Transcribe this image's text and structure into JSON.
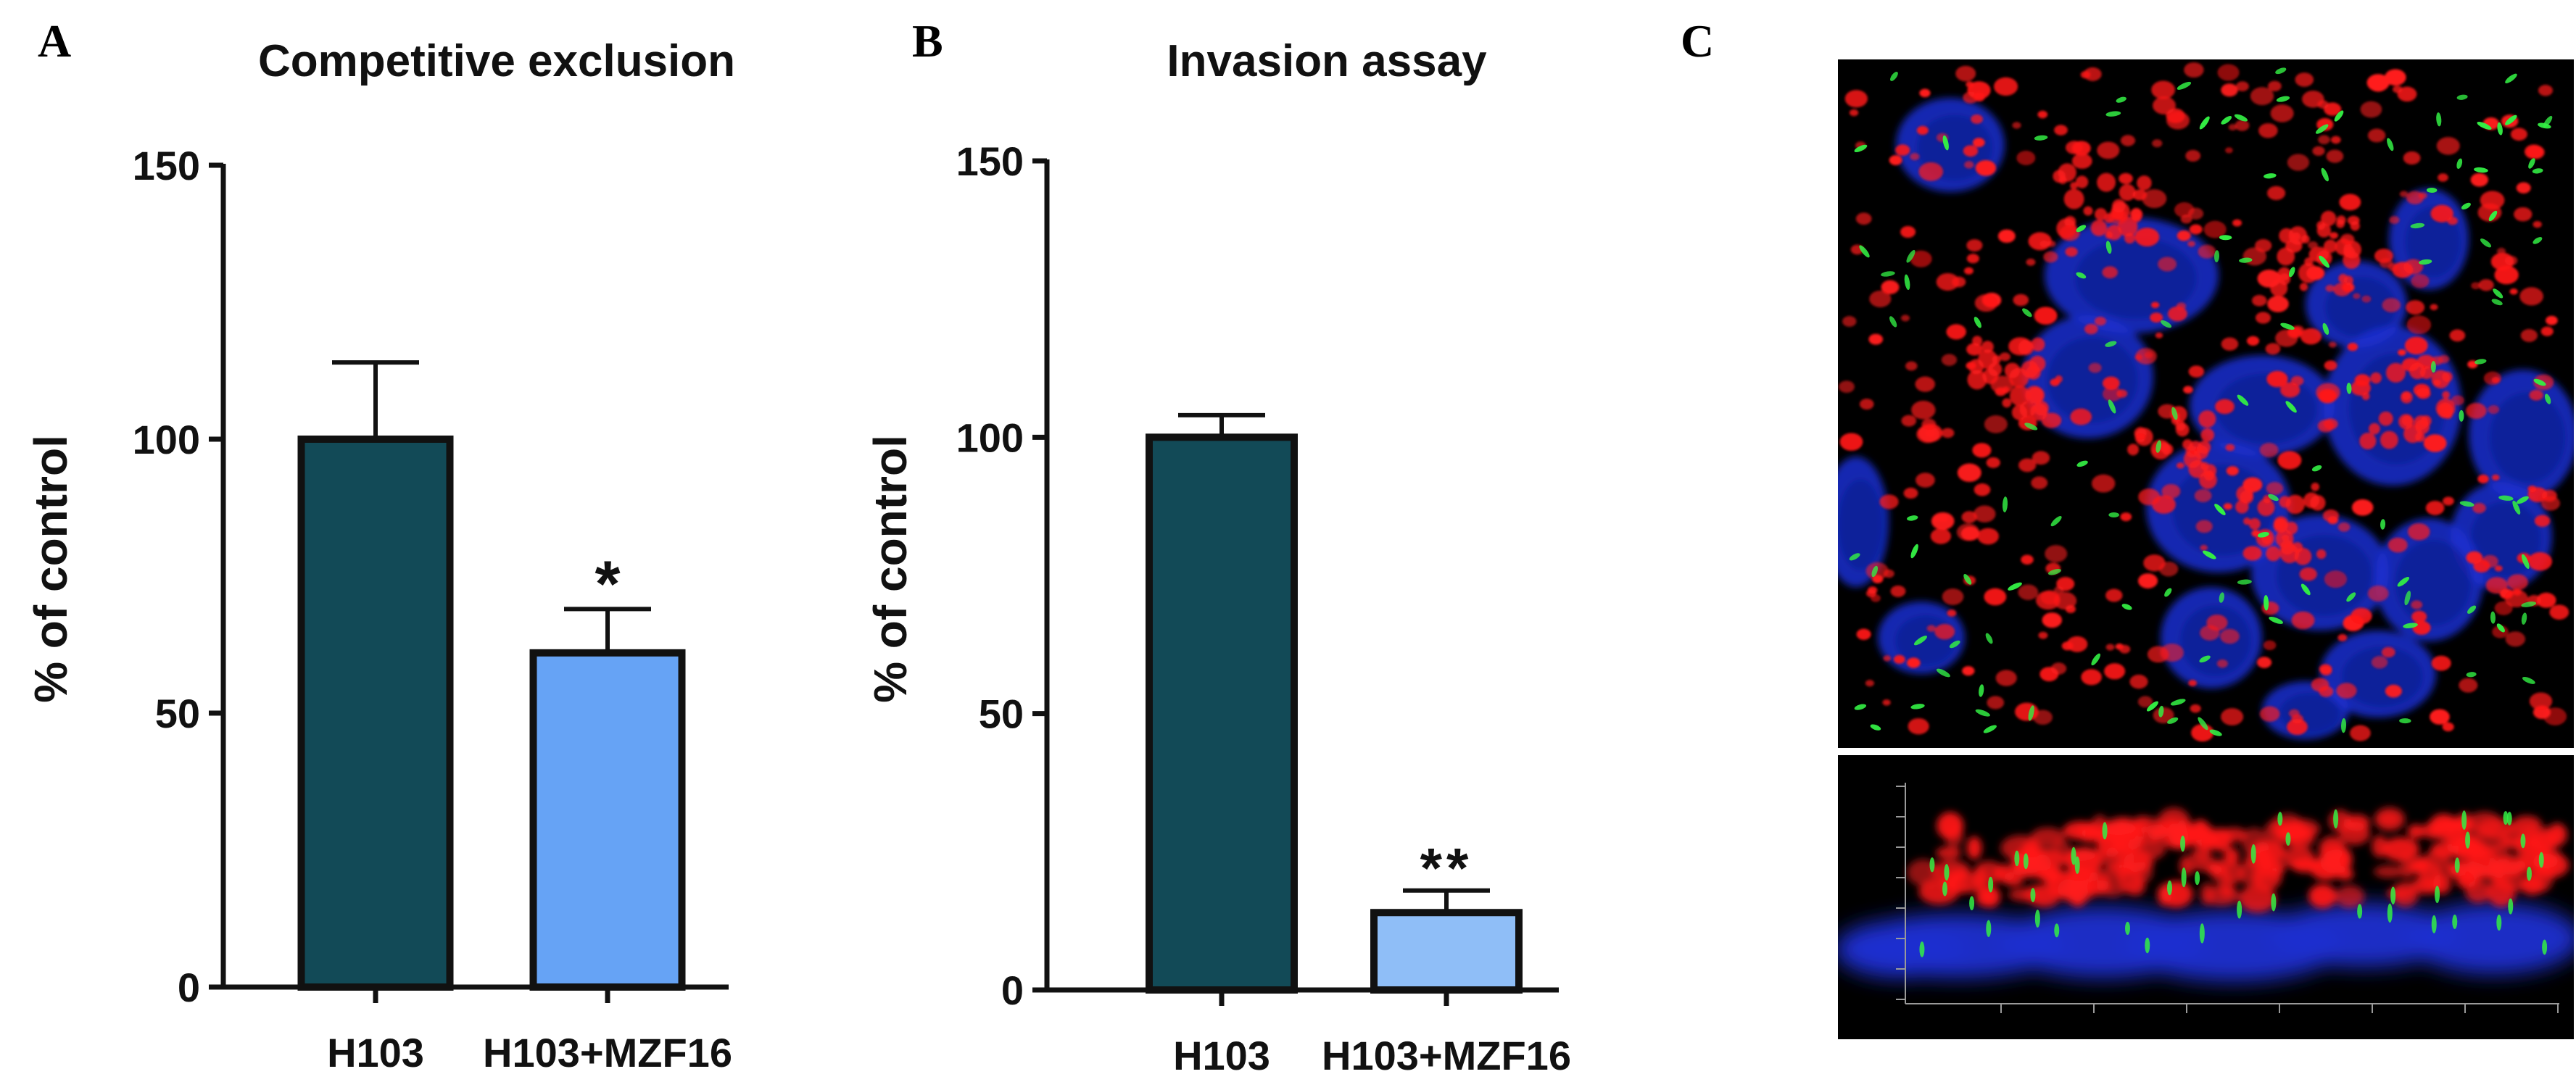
{
  "panels": {
    "a": {
      "letter": "A"
    },
    "b": {
      "letter": "B"
    },
    "c": {
      "letter": "C"
    }
  },
  "chart_data": [
    {
      "type": "bar",
      "title": "Competitive exclusion",
      "xlabel": "",
      "ylabel": "% of control",
      "ylim": [
        0,
        150
      ],
      "yticks": [
        0,
        50,
        100,
        150
      ],
      "categories": [
        "H103",
        "H103+MZF16"
      ],
      "values": [
        100,
        61
      ],
      "error_upper": [
        14,
        8
      ],
      "significance": [
        "",
        "*"
      ],
      "colors": [
        "#124a57",
        "#66a3f5"
      ],
      "grid": false
    },
    {
      "type": "bar",
      "title": "Invasion assay",
      "xlabel": "",
      "ylabel": "% of control",
      "ylim": [
        0,
        150
      ],
      "yticks": [
        0,
        50,
        100,
        150
      ],
      "categories": [
        "H103",
        "H103+MZF16"
      ],
      "values": [
        100,
        14
      ],
      "error_upper": [
        4,
        4
      ],
      "significance": [
        "",
        "**"
      ],
      "colors": [
        "#124a57",
        "#8fbef7"
      ],
      "grid": false
    }
  ],
  "microscopy": {
    "background": "#000000",
    "nuclei_color": "#1a2fd0",
    "cells_color": "#ff1a1a",
    "bacteria_color": "#33ee44"
  }
}
